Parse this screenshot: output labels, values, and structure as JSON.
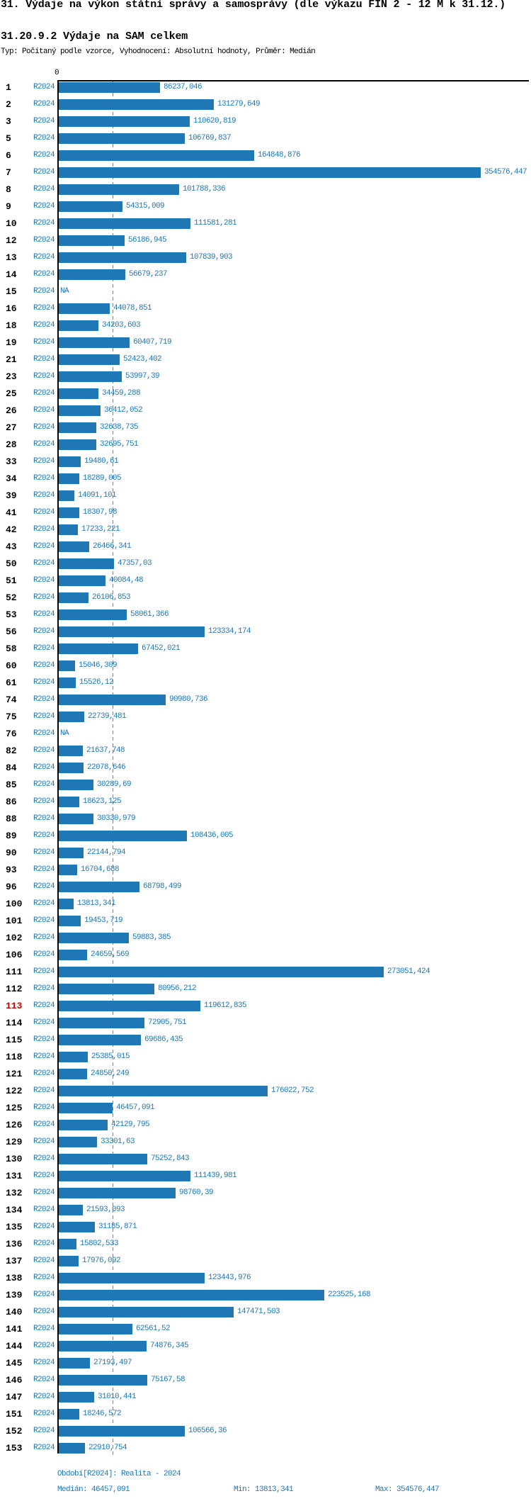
{
  "title": "31. Výdaje na výkon státní správy a samosprávy (dle výkazu FIN 2 - 12 M k 31.12.)",
  "subtitle": "31.20.9.2 Výdaje na SAM celkem",
  "meta": "Typ: Počítaný podle vzorce, Vyhodnocení: Absolutní hodnoty, Průměr: Medián",
  "chart_data": {
    "type": "bar",
    "orientation": "horizontal",
    "series_label": "R2024",
    "axis_zero_label": "0",
    "xlim": [
      0,
      354576.447
    ],
    "median_value": 46457.091,
    "na_text": "NA",
    "highlight_row": "113",
    "highlight_color": "#cc0000",
    "bar_color": "#1f77b4",
    "grid": "median-dashed-line",
    "rows": [
      {
        "id": "1",
        "value": 86237.046,
        "label": "86237,046"
      },
      {
        "id": "2",
        "value": 131279.649,
        "label": "131279,649"
      },
      {
        "id": "3",
        "value": 110620.819,
        "label": "110620,819"
      },
      {
        "id": "5",
        "value": 106769.837,
        "label": "106769,837"
      },
      {
        "id": "6",
        "value": 164848.876,
        "label": "164848,876"
      },
      {
        "id": "7",
        "value": 354576.447,
        "label": "354576,447"
      },
      {
        "id": "8",
        "value": 101788.336,
        "label": "101788,336"
      },
      {
        "id": "9",
        "value": 54315.009,
        "label": "54315,009"
      },
      {
        "id": "10",
        "value": 111581.281,
        "label": "111581,281"
      },
      {
        "id": "12",
        "value": 56186.945,
        "label": "56186,945"
      },
      {
        "id": "13",
        "value": 107839.903,
        "label": "107839,903"
      },
      {
        "id": "14",
        "value": 56679.237,
        "label": "56679,237"
      },
      {
        "id": "15",
        "value": null,
        "label": "NA"
      },
      {
        "id": "16",
        "value": 44078.851,
        "label": "44078,851"
      },
      {
        "id": "18",
        "value": 34203.603,
        "label": "34203,603"
      },
      {
        "id": "19",
        "value": 60407.719,
        "label": "60407,719"
      },
      {
        "id": "21",
        "value": 52423.402,
        "label": "52423,402"
      },
      {
        "id": "23",
        "value": 53997.39,
        "label": "53997,39"
      },
      {
        "id": "25",
        "value": 34459.288,
        "label": "34459,288"
      },
      {
        "id": "26",
        "value": 36412.052,
        "label": "36412,052"
      },
      {
        "id": "27",
        "value": 32638.735,
        "label": "32638,735"
      },
      {
        "id": "28",
        "value": 32695.751,
        "label": "32695,751"
      },
      {
        "id": "33",
        "value": 19480.61,
        "label": "19480,61"
      },
      {
        "id": "34",
        "value": 18289.005,
        "label": "18289,005"
      },
      {
        "id": "39",
        "value": 14091.101,
        "label": "14091,101"
      },
      {
        "id": "41",
        "value": 18307.98,
        "label": "18307,98"
      },
      {
        "id": "42",
        "value": 17233.221,
        "label": "17233,221"
      },
      {
        "id": "43",
        "value": 26466.341,
        "label": "26466,341"
      },
      {
        "id": "50",
        "value": 47357.03,
        "label": "47357,03"
      },
      {
        "id": "51",
        "value": 40084.48,
        "label": "40084,48"
      },
      {
        "id": "52",
        "value": 26106.853,
        "label": "26106,853"
      },
      {
        "id": "53",
        "value": 58061.366,
        "label": "58061,366"
      },
      {
        "id": "56",
        "value": 123334.174,
        "label": "123334,174"
      },
      {
        "id": "58",
        "value": 67452.021,
        "label": "67452,021"
      },
      {
        "id": "60",
        "value": 15046.309,
        "label": "15046,309"
      },
      {
        "id": "61",
        "value": 15526.12,
        "label": "15526,12"
      },
      {
        "id": "74",
        "value": 90980.736,
        "label": "90980,736"
      },
      {
        "id": "75",
        "value": 22739.481,
        "label": "22739,481"
      },
      {
        "id": "76",
        "value": null,
        "label": "NA"
      },
      {
        "id": "82",
        "value": 21637.748,
        "label": "21637,748"
      },
      {
        "id": "84",
        "value": 22078.646,
        "label": "22078,646"
      },
      {
        "id": "85",
        "value": 30289.69,
        "label": "30289,69"
      },
      {
        "id": "86",
        "value": 18623.125,
        "label": "18623,125"
      },
      {
        "id": "88",
        "value": 30330.979,
        "label": "30330,979"
      },
      {
        "id": "89",
        "value": 108436.005,
        "label": "108436,005"
      },
      {
        "id": "90",
        "value": 22144.794,
        "label": "22144,794"
      },
      {
        "id": "93",
        "value": 16704.688,
        "label": "16704,688"
      },
      {
        "id": "96",
        "value": 68798.499,
        "label": "68798,499"
      },
      {
        "id": "100",
        "value": 13813.341,
        "label": "13813,341"
      },
      {
        "id": "101",
        "value": 19453.719,
        "label": "19453,719"
      },
      {
        "id": "102",
        "value": 59883.385,
        "label": "59883,385"
      },
      {
        "id": "106",
        "value": 24659.569,
        "label": "24659,569"
      },
      {
        "id": "111",
        "value": 273051.424,
        "label": "273051,424"
      },
      {
        "id": "112",
        "value": 80956.212,
        "label": "80956,212"
      },
      {
        "id": "113",
        "value": 119612.835,
        "label": "119612,835"
      },
      {
        "id": "114",
        "value": 72905.751,
        "label": "72905,751"
      },
      {
        "id": "115",
        "value": 69686.435,
        "label": "69686,435"
      },
      {
        "id": "118",
        "value": 25385.015,
        "label": "25385,015"
      },
      {
        "id": "121",
        "value": 24850.249,
        "label": "24850,249"
      },
      {
        "id": "122",
        "value": 176022.752,
        "label": "176022,752"
      },
      {
        "id": "125",
        "value": 46457.091,
        "label": "46457,091"
      },
      {
        "id": "126",
        "value": 42129.795,
        "label": "42129,795"
      },
      {
        "id": "129",
        "value": 33301.63,
        "label": "33301,63"
      },
      {
        "id": "130",
        "value": 75252.843,
        "label": "75252,843"
      },
      {
        "id": "131",
        "value": 111439.981,
        "label": "111439,981"
      },
      {
        "id": "132",
        "value": 98760.39,
        "label": "98760,39"
      },
      {
        "id": "134",
        "value": 21593.093,
        "label": "21593,093"
      },
      {
        "id": "135",
        "value": 31185.871,
        "label": "31185,871"
      },
      {
        "id": "136",
        "value": 15802.533,
        "label": "15802,533"
      },
      {
        "id": "137",
        "value": 17976.092,
        "label": "17976,092"
      },
      {
        "id": "138",
        "value": 123443.976,
        "label": "123443,976"
      },
      {
        "id": "139",
        "value": 223525.168,
        "label": "223525,168"
      },
      {
        "id": "140",
        "value": 147471.503,
        "label": "147471,503"
      },
      {
        "id": "141",
        "value": 62561.52,
        "label": "62561,52"
      },
      {
        "id": "144",
        "value": 74876.345,
        "label": "74876,345"
      },
      {
        "id": "145",
        "value": 27193.497,
        "label": "27193,497"
      },
      {
        "id": "146",
        "value": 75167.58,
        "label": "75167,58"
      },
      {
        "id": "147",
        "value": 31010.441,
        "label": "31010,441"
      },
      {
        "id": "151",
        "value": 18246.572,
        "label": "18246,572"
      },
      {
        "id": "152",
        "value": 106566.36,
        "label": "106566,36"
      },
      {
        "id": "153",
        "value": 22910.754,
        "label": "22910,754"
      }
    ]
  },
  "footer": {
    "period": "Období[R2024]: Realita - 2024",
    "median": "Medián: 46457,091",
    "min": "Min: 13813,341",
    "max": "Max: 354576,447"
  }
}
